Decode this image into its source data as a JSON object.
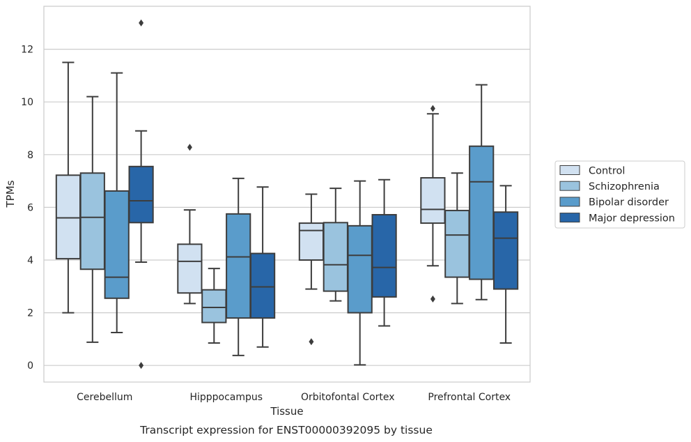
{
  "chart_data": {
    "type": "box",
    "title": "",
    "caption": "Transcript expression for ENST00000392095 by tissue",
    "xlabel": "Tissue",
    "ylabel": "TPMs",
    "ylim": [
      -0.63,
      13.63
    ],
    "yticks": [
      0,
      2,
      4,
      6,
      8,
      10,
      12
    ],
    "grid": "horizontal",
    "legend_position": "right",
    "categories": [
      "Cerebellum",
      "Hipppocampus",
      "Orbitofontal Cortex",
      "Prefrontal Cortex"
    ],
    "series": [
      {
        "name": "Control",
        "color": "#d1e1f1",
        "boxes": [
          {
            "whislo": 2.0,
            "q1": 4.05,
            "med": 5.6,
            "q3": 7.22,
            "whishi": 11.5,
            "fliers": []
          },
          {
            "whislo": 2.35,
            "q1": 2.75,
            "med": 3.95,
            "q3": 4.6,
            "whishi": 5.9,
            "fliers": [
              8.28
            ]
          },
          {
            "whislo": 2.9,
            "q1": 4.0,
            "med": 5.12,
            "q3": 5.4,
            "whishi": 6.5,
            "fliers": [
              0.9
            ]
          },
          {
            "whislo": 3.78,
            "q1": 5.4,
            "med": 5.92,
            "q3": 7.12,
            "whishi": 9.55,
            "fliers": [
              9.75,
              2.52
            ]
          }
        ]
      },
      {
        "name": "Schizophrenia",
        "color": "#9ac3de",
        "boxes": [
          {
            "whislo": 0.88,
            "q1": 3.65,
            "med": 5.62,
            "q3": 7.3,
            "whishi": 10.2,
            "fliers": []
          },
          {
            "whislo": 0.85,
            "q1": 1.63,
            "med": 2.2,
            "q3": 2.87,
            "whishi": 3.68,
            "fliers": []
          },
          {
            "whislo": 2.45,
            "q1": 2.82,
            "med": 3.82,
            "q3": 5.42,
            "whishi": 6.72,
            "fliers": []
          },
          {
            "whislo": 2.35,
            "q1": 3.35,
            "med": 4.95,
            "q3": 5.88,
            "whishi": 7.3,
            "fliers": []
          }
        ]
      },
      {
        "name": "Bipolar disorder",
        "color": "#5a9ccb",
        "boxes": [
          {
            "whislo": 1.25,
            "q1": 2.55,
            "med": 3.35,
            "q3": 6.62,
            "whishi": 11.1,
            "fliers": []
          },
          {
            "whislo": 0.38,
            "q1": 1.8,
            "med": 4.12,
            "q3": 5.75,
            "whishi": 7.1,
            "fliers": []
          },
          {
            "whislo": 0.02,
            "q1": 2.0,
            "med": 4.18,
            "q3": 5.3,
            "whishi": 7.0,
            "fliers": []
          },
          {
            "whislo": 2.5,
            "q1": 3.27,
            "med": 6.97,
            "q3": 8.32,
            "whishi": 10.65,
            "fliers": []
          }
        ]
      },
      {
        "name": "Major depression",
        "color": "#2866a8",
        "boxes": [
          {
            "whislo": 3.92,
            "q1": 5.42,
            "med": 6.25,
            "q3": 7.55,
            "whishi": 8.9,
            "fliers": [
              13.0,
              0.0
            ]
          },
          {
            "whislo": 0.7,
            "q1": 1.8,
            "med": 2.98,
            "q3": 4.25,
            "whishi": 6.77,
            "fliers": []
          },
          {
            "whislo": 1.5,
            "q1": 2.6,
            "med": 3.72,
            "q3": 5.72,
            "whishi": 7.05,
            "fliers": []
          },
          {
            "whislo": 0.85,
            "q1": 2.9,
            "med": 4.83,
            "q3": 5.82,
            "whishi": 6.82,
            "fliers": []
          }
        ]
      }
    ]
  }
}
